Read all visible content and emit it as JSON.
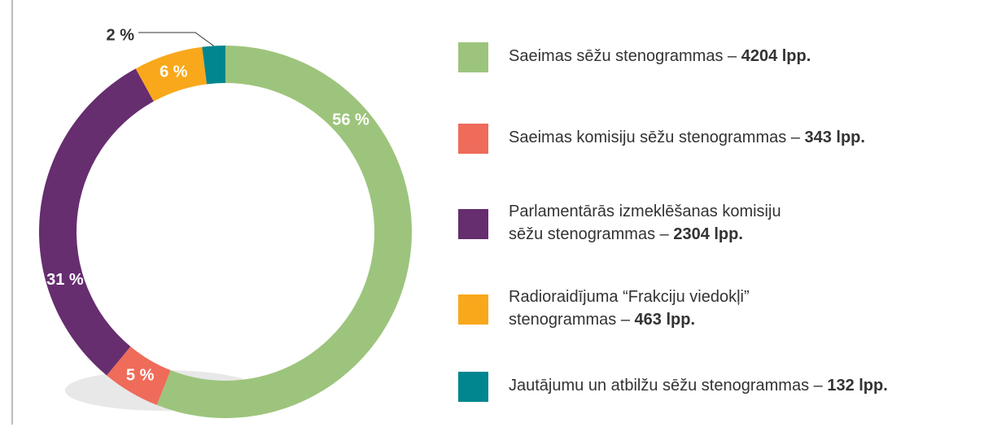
{
  "chart_data": {
    "type": "donut",
    "values": [
      56,
      5,
      31,
      6,
      2
    ],
    "value_labels": [
      "56 %",
      "5 %",
      "31 %",
      "6 %",
      "2 %"
    ],
    "colors": [
      "#9dc47c",
      "#ef6b5a",
      "#662d6f",
      "#f9a81b",
      "#00868f"
    ],
    "legend": [
      {
        "lines": [
          "Saeimas sēžu stenogrammas –"
        ],
        "pages": "4204 lpp."
      },
      {
        "lines": [
          "Saeimas komisiju sēžu stenogrammas –"
        ],
        "pages": "343 lpp."
      },
      {
        "lines": [
          "Parlamentārās izmeklēšanas komisiju",
          "sēžu stenogrammas –"
        ],
        "pages": "2304 lpp."
      },
      {
        "lines": [
          "Radioraidījuma “Frakciju viedokļi”",
          "stenogrammas –"
        ],
        "pages": "463 lpp."
      },
      {
        "lines": [
          "Jautājumu un atbilžu sēžu stenogrammas –"
        ],
        "pages": "132 lpp."
      }
    ]
  }
}
